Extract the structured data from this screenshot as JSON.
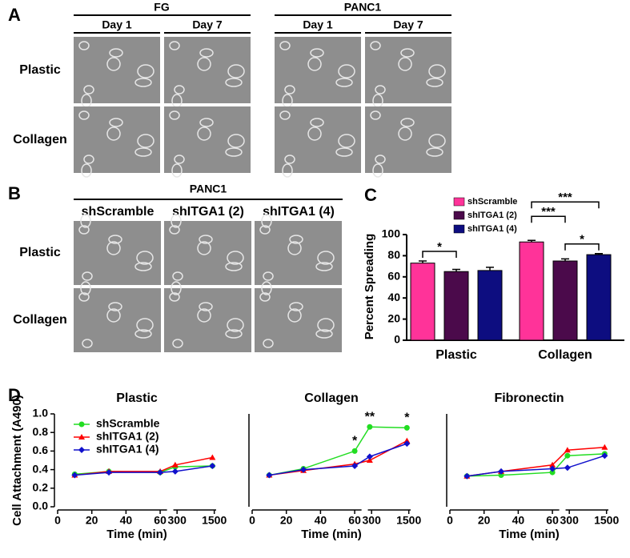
{
  "panel_a": {
    "label": "A",
    "groups": [
      {
        "title": "FG",
        "columns": [
          "Day 1",
          "Day 7"
        ]
      },
      {
        "title": "PANC1",
        "columns": [
          "Day 1",
          "Day 7"
        ]
      }
    ],
    "rows": [
      "Plastic",
      "Collagen"
    ]
  },
  "panel_b": {
    "label": "B",
    "title": "PANC1",
    "columns": [
      "shScramble",
      "shITGA1 (2)",
      "shITGA1 (4)"
    ],
    "rows": [
      "Plastic",
      "Collagen"
    ]
  },
  "chart_data": [
    {
      "type": "bar",
      "label": "C",
      "ylabel": "Percent Spreading",
      "categories": [
        "Plastic",
        "Collagen"
      ],
      "series": [
        {
          "name": "shScramble",
          "color": "#ff3399",
          "values": [
            73,
            93
          ],
          "errors": [
            2,
            1.5
          ]
        },
        {
          "name": "shITGA1 (2)",
          "color": "#4b0a4b",
          "values": [
            65,
            75
          ],
          "errors": [
            2,
            2
          ]
        },
        {
          "name": "shITGA1 (4)",
          "color": "#0d0d80",
          "values": [
            66,
            81
          ],
          "errors": [
            3,
            1
          ]
        }
      ],
      "ylim": [
        0,
        100
      ],
      "yticks": [
        0,
        20,
        40,
        60,
        80,
        100
      ],
      "significance": [
        {
          "category": 0,
          "from": 0,
          "to": 1,
          "label": "*"
        },
        {
          "category": 1,
          "from": 1,
          "to": 2,
          "label": "*"
        },
        {
          "category": 1,
          "from": 0,
          "to": 1,
          "label": "***"
        },
        {
          "category": 1,
          "from": 0,
          "to": 2,
          "label": "***"
        }
      ]
    },
    {
      "type": "line",
      "label": "D",
      "title": "Plastic",
      "xlabel": "Time (min)",
      "ylabel": "Cell Attachment (A490)",
      "x": [
        10,
        30,
        60,
        240,
        1440
      ],
      "series": [
        {
          "name": "shScramble",
          "color": "#22dd22",
          "marker": "circle",
          "values": [
            0.35,
            0.38,
            0.37,
            0.43,
            0.44
          ]
        },
        {
          "name": "shITGA1 (2)",
          "color": "#ff0000",
          "marker": "triangle",
          "values": [
            0.34,
            0.38,
            0.38,
            0.45,
            0.53
          ]
        },
        {
          "name": "shITGA1 (4)",
          "color": "#1010cc",
          "marker": "diamond",
          "values": [
            0.34,
            0.37,
            0.37,
            0.38,
            0.44
          ]
        }
      ],
      "xlim": [
        0,
        1560
      ],
      "xbreak": [
        64,
        180
      ],
      "xticks": [
        0,
        20,
        40,
        60,
        300,
        1500
      ],
      "ylim": [
        0,
        1
      ],
      "yticks": [
        {
          "value": 0,
          "label": "0.0"
        },
        0.2,
        0.4,
        0.6,
        0.8,
        {
          "value": 1,
          "label": "1.0"
        }
      ]
    },
    {
      "type": "line",
      "title": "Collagen",
      "xlabel": "Time (min)",
      "x": [
        10,
        30,
        60,
        240,
        1440
      ],
      "series": [
        {
          "color": "#22dd22",
          "marker": "circle",
          "values": [
            0.34,
            0.41,
            0.6,
            0.86,
            0.85
          ]
        },
        {
          "color": "#ff0000",
          "marker": "triangle",
          "values": [
            0.34,
            0.39,
            0.46,
            0.5,
            0.71
          ]
        },
        {
          "color": "#1010cc",
          "marker": "diamond",
          "values": [
            0.34,
            0.4,
            0.44,
            0.54,
            0.68
          ]
        }
      ],
      "annotations": [
        {
          "x": 60,
          "label": "*"
        },
        {
          "x": 240,
          "label": "**"
        },
        {
          "x": 1440,
          "label": "*"
        }
      ],
      "xlim": [
        0,
        1560
      ],
      "xbreak": [
        64,
        180
      ],
      "xticks": [
        0,
        20,
        40,
        60,
        300,
        1500
      ],
      "ylim": [
        0,
        1
      ]
    },
    {
      "type": "line",
      "title": "Fibronectin",
      "xlabel": "Time (min)",
      "x": [
        10,
        30,
        60,
        240,
        1440
      ],
      "series": [
        {
          "color": "#22dd22",
          "marker": "circle",
          "values": [
            0.33,
            0.34,
            0.37,
            0.55,
            0.57
          ]
        },
        {
          "color": "#ff0000",
          "marker": "triangle",
          "values": [
            0.33,
            0.38,
            0.45,
            0.61,
            0.64
          ]
        },
        {
          "color": "#1010cc",
          "marker": "diamond",
          "values": [
            0.33,
            0.38,
            0.41,
            0.42,
            0.55
          ]
        }
      ],
      "xlim": [
        0,
        1560
      ],
      "xbreak": [
        64,
        180
      ],
      "xticks": [
        0,
        20,
        40,
        60,
        300,
        1500
      ],
      "ylim": [
        0,
        1
      ]
    }
  ]
}
